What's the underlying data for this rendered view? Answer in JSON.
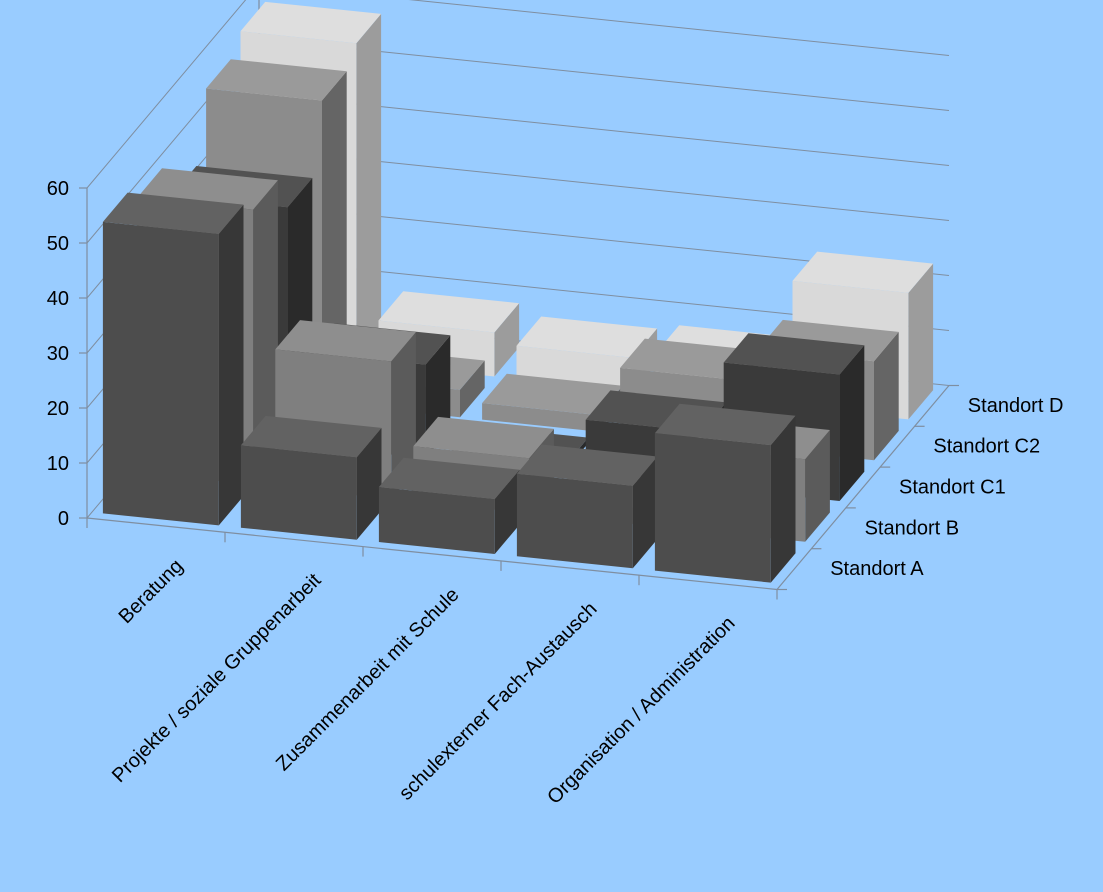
{
  "chart_data": {
    "type": "bar",
    "title": "",
    "xlabel": "",
    "ylabel": "",
    "ylim": [
      0,
      60
    ],
    "yticks": [
      0,
      10,
      20,
      30,
      40,
      50,
      60
    ],
    "grid": true,
    "categories": [
      "Beratung",
      "Projekte / soziale Gruppenarbeit",
      "Zusammenarbeit mit Schule",
      "schulexterner Fach-Austausch",
      "Organisation / Administration"
    ],
    "series": [
      {
        "name": "Standort A",
        "color": "#4d4d4d",
        "values": [
          53,
          15,
          10,
          15,
          25
        ]
      },
      {
        "name": "Standort B",
        "color": "#7f7f7f",
        "values": [
          50,
          25,
          10,
          3,
          15
        ]
      },
      {
        "name": "Standort C1",
        "color": "#3a3a3a",
        "values": [
          43,
          17,
          1,
          10,
          23
        ]
      },
      {
        "name": "Standort C2",
        "color": "#8c8c8c",
        "values": [
          55,
          5,
          3,
          12,
          18
        ]
      },
      {
        "name": "Standort D",
        "color": "#d9d9d9",
        "values": [
          58,
          8,
          6,
          7,
          23
        ]
      }
    ]
  }
}
